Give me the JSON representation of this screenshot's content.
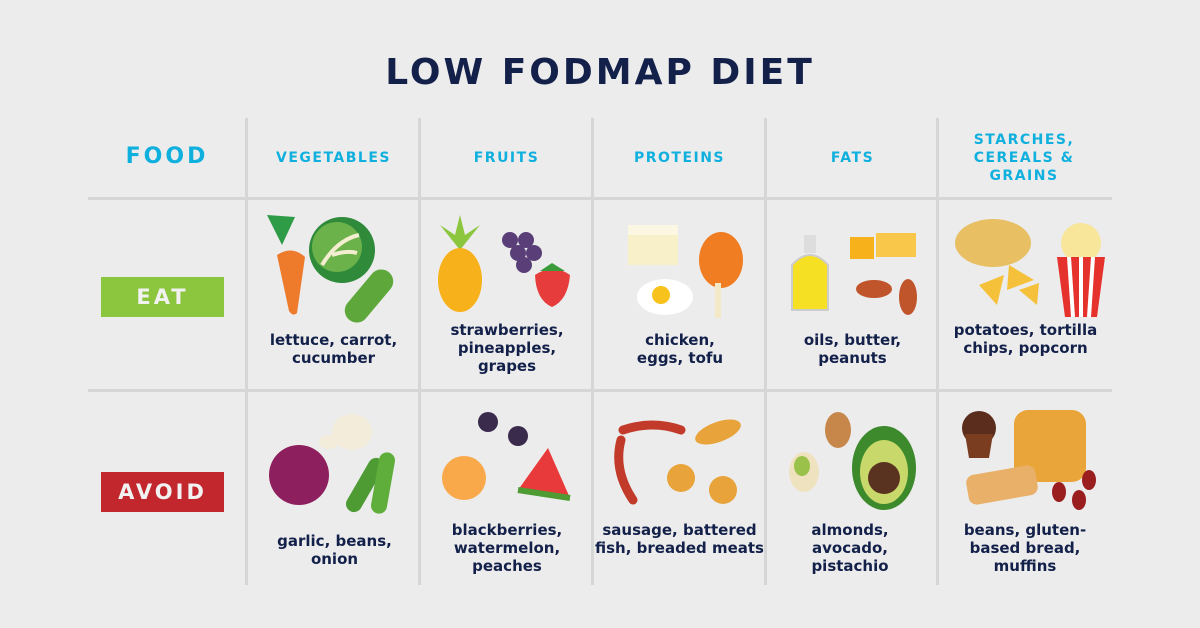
{
  "title": "LOW FODMAP DIET",
  "header": {
    "food_label": "FOOD",
    "columns": [
      "VEGETABLES",
      "FRUITS",
      "PROTEINS",
      "FATS",
      "STARCHES, CEREALS & GRAINS"
    ]
  },
  "rows": [
    {
      "label": "EAT",
      "color": "#8cc63f",
      "cells": [
        {
          "text": "lettuce, carrot, cucumber"
        },
        {
          "text": "strawberries, pineapples, grapes"
        },
        {
          "text": "chicken, eggs, tofu"
        },
        {
          "text": "oils, butter, peanuts"
        },
        {
          "text": "potatoes, tortilla chips, popcorn"
        }
      ]
    },
    {
      "label": "AVOID",
      "color": "#c1272d",
      "cells": [
        {
          "text": "garlic, beans, onion"
        },
        {
          "text": "blackberries, watermelon, peaches"
        },
        {
          "text": "sausage, battered fish, breaded meats"
        },
        {
          "text": "almonds, avocado, pistachio"
        },
        {
          "text": "beans, gluten-based bread, muffins"
        }
      ]
    }
  ],
  "colors": {
    "title": "#13214a",
    "header": "#10b0de",
    "text": "#13214a",
    "background": "#ececec",
    "grid": "#d6d6d6"
  }
}
